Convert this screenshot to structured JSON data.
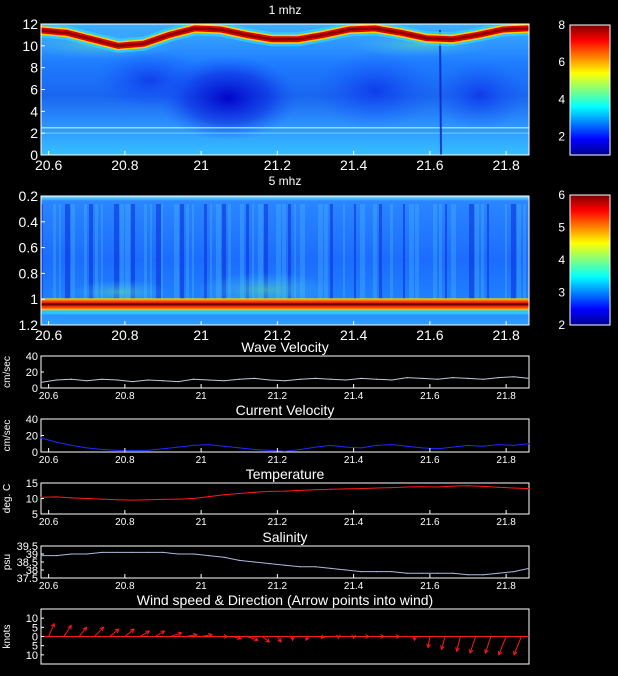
{
  "chart_data": [
    {
      "type": "heatmap",
      "title": "1 mhz",
      "xlim": [
        20.58,
        21.86
      ],
      "ylim": [
        0,
        12
      ],
      "xticks": [
        "20.6",
        "20.8",
        "21",
        "21.2",
        "21.4",
        "21.6",
        "21.8"
      ],
      "yticks": [
        "0",
        "2",
        "4",
        "6",
        "8",
        "10",
        "12"
      ],
      "colorbar": {
        "min": 1,
        "max": 8,
        "ticks": [
          "2",
          "4",
          "6",
          "8"
        ]
      },
      "surface_band_depth": [
        11.4,
        11.2,
        10.6,
        10.0,
        10.2,
        11.0,
        11.6,
        11.5,
        11.0,
        10.6,
        10.6,
        11.0,
        11.5,
        11.6,
        11.2,
        10.7,
        10.6,
        11.0,
        11.5,
        11.6
      ]
    },
    {
      "type": "heatmap",
      "title": "5 mhz",
      "xlim": [
        20.58,
        21.86
      ],
      "ylim": [
        0.2,
        1.2
      ],
      "xticks": [
        "20.6",
        "20.8",
        "21",
        "21.2",
        "21.4",
        "21.6",
        "21.8"
      ],
      "yticks": [
        "0.2",
        "0.4",
        "0.6",
        "0.8",
        "1",
        "1.2"
      ],
      "colorbar": {
        "min": 2,
        "max": 6,
        "ticks": [
          "2",
          "3",
          "4",
          "5",
          "6"
        ]
      },
      "bottom_band_depth": 1.04
    },
    {
      "type": "line",
      "title": "Wave Velocity",
      "ylabel": "cm/sec",
      "xlim": [
        20.58,
        21.86
      ],
      "ylim": [
        0,
        40
      ],
      "yticks": [
        "0",
        "20",
        "40"
      ],
      "xticks": [
        "20.6",
        "20.8",
        "21",
        "21.2",
        "21.4",
        "21.6",
        "21.8"
      ],
      "color": "#bfc7d8",
      "x": [
        20.58,
        20.62,
        20.66,
        20.7,
        20.74,
        20.78,
        20.82,
        20.86,
        20.9,
        20.94,
        20.98,
        21.02,
        21.06,
        21.1,
        21.14,
        21.18,
        21.22,
        21.26,
        21.3,
        21.34,
        21.38,
        21.42,
        21.46,
        21.5,
        21.54,
        21.58,
        21.62,
        21.66,
        21.7,
        21.74,
        21.78,
        21.82,
        21.86
      ],
      "values": [
        7,
        10,
        11,
        9,
        11,
        10,
        8,
        10,
        9,
        8,
        11,
        10,
        9,
        11,
        12,
        10,
        9,
        11,
        12,
        11,
        10,
        12,
        11,
        10,
        13,
        12,
        11,
        13,
        12,
        11,
        13,
        14,
        12
      ]
    },
    {
      "type": "line",
      "title": "Current Velocity",
      "ylabel": "cm/sec",
      "xlim": [
        20.58,
        21.86
      ],
      "ylim": [
        0,
        40
      ],
      "yticks": [
        "0",
        "20",
        "40"
      ],
      "xticks": [
        "20.6",
        "20.8",
        "21",
        "21.2",
        "21.4",
        "21.6",
        "21.8"
      ],
      "color": "#1a2cff",
      "x": [
        20.58,
        20.62,
        20.66,
        20.7,
        20.74,
        20.78,
        20.82,
        20.86,
        20.9,
        20.94,
        20.98,
        21.02,
        21.06,
        21.1,
        21.14,
        21.18,
        21.22,
        21.26,
        21.3,
        21.34,
        21.38,
        21.42,
        21.46,
        21.5,
        21.54,
        21.58,
        21.62,
        21.66,
        21.7,
        21.74,
        21.78,
        21.82,
        21.86
      ],
      "values": [
        17,
        12,
        8,
        5,
        3,
        2,
        2,
        2,
        4,
        6,
        8,
        9,
        7,
        5,
        3,
        2,
        1,
        3,
        6,
        8,
        6,
        5,
        8,
        9,
        7,
        5,
        4,
        6,
        8,
        7,
        9,
        8,
        10
      ]
    },
    {
      "type": "line",
      "title": "Temperature",
      "ylabel": "deg. C",
      "xlim": [
        20.58,
        21.86
      ],
      "ylim": [
        5,
        15
      ],
      "yticks": [
        "5",
        "10",
        "15"
      ],
      "xticks": [
        "20.6",
        "20.8",
        "21",
        "21.2",
        "21.4",
        "21.6",
        "21.8"
      ],
      "color": "#ff1a1a",
      "x": [
        20.58,
        20.62,
        20.66,
        20.7,
        20.74,
        20.78,
        20.82,
        20.86,
        20.9,
        20.94,
        20.98,
        21.02,
        21.06,
        21.1,
        21.14,
        21.18,
        21.22,
        21.26,
        21.3,
        21.34,
        21.38,
        21.42,
        21.46,
        21.5,
        21.54,
        21.58,
        21.62,
        21.66,
        21.7,
        21.74,
        21.78,
        21.82,
        21.86
      ],
      "values": [
        10.4,
        10.5,
        10.2,
        10.0,
        9.8,
        9.6,
        9.5,
        9.6,
        9.7,
        9.8,
        10.0,
        10.6,
        11.2,
        11.6,
        12.0,
        12.3,
        12.4,
        12.6,
        12.8,
        13.0,
        13.1,
        13.2,
        13.4,
        13.5,
        13.7,
        13.8,
        13.7,
        14.0,
        14.1,
        13.9,
        13.6,
        13.4,
        13.2
      ]
    },
    {
      "type": "line",
      "title": "Salinity",
      "ylabel": "psu",
      "xlim": [
        20.58,
        21.86
      ],
      "ylim": [
        37.5,
        39.5
      ],
      "yticks": [
        "37.5",
        "38",
        "38.5",
        "39",
        "39.5"
      ],
      "xticks": [
        "20.6",
        "20.8",
        "21",
        "21.2",
        "21.4",
        "21.6",
        "21.8"
      ],
      "color": "#a9b9e0",
      "x": [
        20.58,
        20.62,
        20.66,
        20.7,
        20.74,
        20.78,
        20.82,
        20.86,
        20.9,
        20.94,
        20.98,
        21.02,
        21.06,
        21.1,
        21.14,
        21.18,
        21.22,
        21.26,
        21.3,
        21.34,
        21.38,
        21.42,
        21.46,
        21.5,
        21.54,
        21.58,
        21.62,
        21.66,
        21.7,
        21.74,
        21.78,
        21.82,
        21.86
      ],
      "values": [
        38.9,
        38.9,
        39.0,
        39.0,
        39.1,
        39.1,
        39.1,
        39.1,
        39.1,
        39.0,
        39.0,
        38.9,
        38.8,
        38.6,
        38.5,
        38.4,
        38.3,
        38.2,
        38.2,
        38.1,
        38.0,
        37.9,
        37.9,
        37.9,
        37.8,
        37.8,
        37.8,
        37.8,
        37.7,
        37.7,
        37.8,
        37.9,
        38.1
      ]
    },
    {
      "type": "quiver",
      "title": "Wind speed & Direction (Arrow points into wind)",
      "ylabel": "knots",
      "xlim": [
        20.58,
        21.86
      ],
      "ylim": [
        -15,
        15
      ],
      "yticks": [
        "10",
        "5",
        "0",
        "5",
        "10"
      ],
      "color": "#ff1a1a",
      "x": [
        20.6,
        20.64,
        20.68,
        20.72,
        20.76,
        20.8,
        20.84,
        20.88,
        20.92,
        20.96,
        21.0,
        21.04,
        21.08,
        21.12,
        21.16,
        21.2,
        21.24,
        21.28,
        21.32,
        21.36,
        21.4,
        21.44,
        21.48,
        21.52,
        21.56,
        21.6,
        21.64,
        21.68,
        21.72,
        21.76,
        21.8,
        21.84
      ],
      "u": [
        3,
        4,
        4,
        5,
        5,
        5,
        5,
        5,
        6,
        6,
        6,
        6,
        5,
        6,
        4,
        2,
        0,
        -1,
        -1,
        0,
        0,
        0,
        0,
        0,
        0,
        -1,
        -2,
        -2,
        -3,
        -3,
        -4,
        -4
      ],
      "v": [
        7,
        6,
        5,
        5,
        4,
        4,
        3,
        3,
        2,
        1,
        1,
        0,
        -1,
        -2,
        -3,
        -3,
        -2,
        -2,
        -1,
        -1,
        -1,
        0,
        0,
        0,
        -2,
        -6,
        -7,
        -8,
        -9,
        -9,
        -10,
        -10
      ]
    }
  ]
}
